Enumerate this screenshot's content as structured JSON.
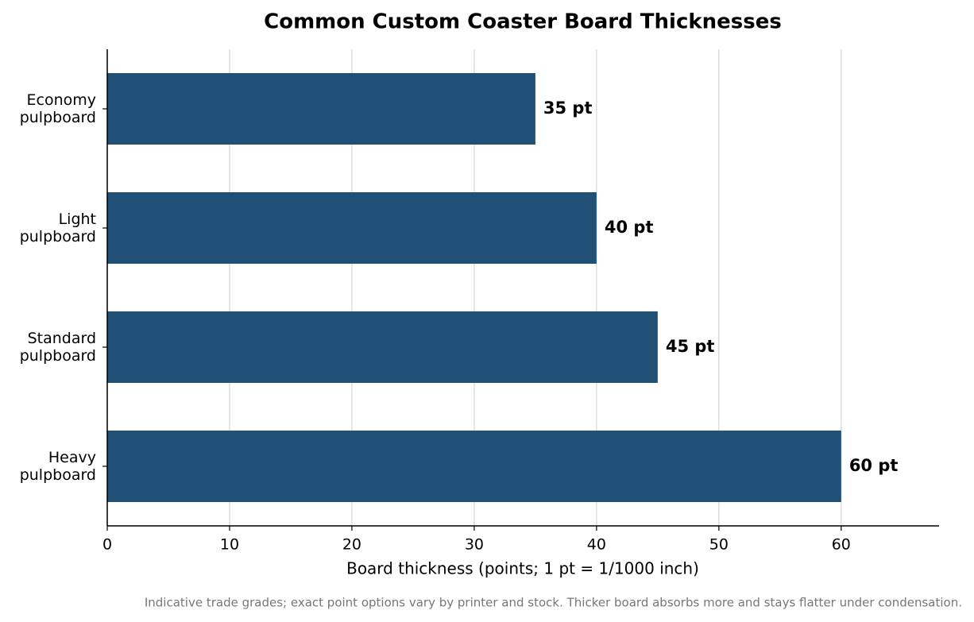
{
  "chart_data": {
    "type": "barh",
    "title": "Common Custom Coaster Board Thicknesses",
    "categories": [
      "Economy\npulpboard",
      "Light\npulpboard",
      "Standard\npulpboard",
      "Heavy\npulpboard"
    ],
    "values": [
      35,
      40,
      45,
      60
    ],
    "value_labels": [
      "35 pt",
      "40 pt",
      "45 pt",
      "60 pt"
    ],
    "color": "#215077",
    "xlim": [
      0,
      68
    ],
    "xticks": [
      0,
      10,
      20,
      30,
      40,
      50,
      60
    ],
    "grid": true,
    "xlabel": "Board thickness (points; 1 pt = 1/1000 inch)",
    "footnote": "Indicative trade grades; exact point options vary by printer and stock. Thicker board absorbs more and stays flatter under condensation."
  }
}
